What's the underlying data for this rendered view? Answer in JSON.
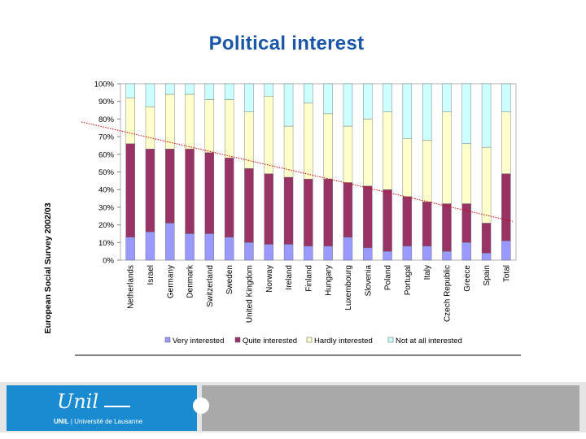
{
  "slide": {
    "title": "Political interest"
  },
  "chart_data": {
    "type": "bar",
    "stacked": true,
    "percent": true,
    "side_label": "European Social Survey 2002/03",
    "categories": [
      "Netherlands",
      "Israel",
      "Germany",
      "Denmark",
      "Switzerland",
      "Sweden",
      "United Kingdom",
      "Norway",
      "Ireland",
      "Finland",
      "Hungary",
      "Luxembourg",
      "Slovenia",
      "Poland",
      "Portugal",
      "Italy",
      "Czech Republic",
      "Greece",
      "Spain",
      "Total"
    ],
    "series": [
      {
        "name": "Very interested",
        "color": "#9999ff",
        "values": [
          13,
          16,
          21,
          15,
          15,
          13,
          10,
          9,
          9,
          8,
          8,
          13,
          7,
          5,
          8,
          8,
          5,
          10,
          4,
          11
        ]
      },
      {
        "name": "Quite interested",
        "color": "#993366",
        "values": [
          53,
          47,
          42,
          48,
          46,
          45,
          42,
          40,
          38,
          38,
          38,
          31,
          35,
          35,
          28,
          25,
          27,
          22,
          17,
          38
        ]
      },
      {
        "name": "Hardly interested",
        "color": "#ffffcc",
        "values": [
          26,
          24,
          31,
          31,
          30,
          33,
          32,
          44,
          29,
          43,
          37,
          32,
          38,
          44,
          33,
          35,
          52,
          34,
          43,
          35
        ]
      },
      {
        "name": "Not at all interested",
        "color": "#ccffff",
        "values": [
          8,
          13,
          6,
          6,
          9,
          9,
          16,
          7,
          24,
          11,
          17,
          24,
          20,
          16,
          31,
          32,
          16,
          34,
          36,
          16
        ]
      }
    ],
    "trendline": {
      "series": "Very interested + Quite interested",
      "start": 77,
      "end": 22,
      "color": "#cc0000",
      "style": "dotted"
    },
    "yticks": [
      "0%",
      "10%",
      "20%",
      "30%",
      "40%",
      "50%",
      "60%",
      "70%",
      "80%",
      "90%",
      "100%"
    ],
    "ylim": [
      0,
      100
    ],
    "legend": "bottom"
  },
  "footer": {
    "logo_script": "Unil",
    "logo_caption_bold": "UNIL",
    "logo_caption_rest": " | Université de Lausanne"
  }
}
